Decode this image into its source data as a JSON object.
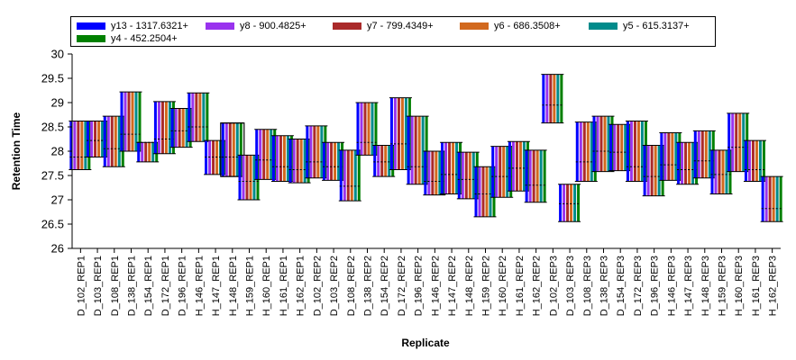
{
  "chart_data": {
    "type": "bar",
    "subtype": "floating-range-bars",
    "xlabel": "Replicate",
    "ylabel": "Retention Time",
    "ylim": [
      26,
      30
    ],
    "yticks": [
      "26",
      "26.5",
      "27",
      "27.5",
      "28",
      "28.5",
      "29",
      "29.5",
      "30"
    ],
    "grid": false,
    "legend_position": "top",
    "series": [
      {
        "name": "y13 - 1317.6321+",
        "color": "#0000ff"
      },
      {
        "name": "y8 - 900.4825+",
        "color": "#9933ee"
      },
      {
        "name": "y7 - 799.4349+",
        "color": "#aa2a2a"
      },
      {
        "name": "y6 - 686.3508+",
        "color": "#d2691e"
      },
      {
        "name": "y5 - 615.3137+",
        "color": "#008b8b"
      },
      {
        "name": "y4 - 452.2504+",
        "color": "#008000"
      }
    ],
    "categories": [
      "D_102_REP1",
      "D_103_REP1",
      "D_108_REP1",
      "D_138_REP1",
      "D_154_REP1",
      "D_172_REP1",
      "D_196_REP1",
      "H_146_REP1",
      "H_147_REP1",
      "H_148_REP1",
      "H_159_REP1",
      "H_160_REP1",
      "H_161_REP1",
      "H_162_REP1",
      "D_102_REP2",
      "D_103_REP2",
      "D_108_REP2",
      "D_138_REP2",
      "D_154_REP2",
      "D_172_REP2",
      "D_196_REP2",
      "H_146_REP2",
      "H_147_REP2",
      "H_148_REP2",
      "H_159_REP2",
      "H_160_REP2",
      "H_161_REP2",
      "H_162_REP2",
      "D_102_REP3",
      "D_103_REP3",
      "D_108_REP3",
      "D_138_REP3",
      "D_154_REP3",
      "D_172_REP3",
      "D_196_REP3",
      "H_146_REP3",
      "H_147_REP3",
      "H_148_REP3",
      "H_159_REP3",
      "H_160_REP3",
      "H_161_REP3",
      "H_162_REP3"
    ],
    "start": [
      27.62,
      27.88,
      27.68,
      28.0,
      27.78,
      27.95,
      28.08,
      28.2,
      27.52,
      27.48,
      27.0,
      27.42,
      27.38,
      27.35,
      27.45,
      27.4,
      26.98,
      27.92,
      27.48,
      27.62,
      27.32,
      27.1,
      27.12,
      27.02,
      26.65,
      27.05,
      27.18,
      26.95,
      28.58,
      26.55,
      27.38,
      27.58,
      27.6,
      27.38,
      27.08,
      27.4,
      27.32,
      27.45,
      27.12,
      27.58,
      27.38,
      26.55
    ],
    "end": [
      28.62,
      28.62,
      28.72,
      29.22,
      28.18,
      29.02,
      28.88,
      29.2,
      28.22,
      28.58,
      27.92,
      28.45,
      28.32,
      28.25,
      28.52,
      28.18,
      28.02,
      29.0,
      28.12,
      29.1,
      28.72,
      28.0,
      28.18,
      27.98,
      27.68,
      28.1,
      28.2,
      28.02,
      29.58,
      27.32,
      28.6,
      28.72,
      28.55,
      28.62,
      28.12,
      28.38,
      28.18,
      28.42,
      28.02,
      28.78,
      28.22,
      27.48
    ],
    "apex": [
      27.88,
      28.22,
      28.05,
      28.35,
      28.18,
      28.25,
      28.42,
      28.5,
      27.88,
      27.88,
      27.38,
      27.82,
      27.68,
      27.62,
      27.78,
      27.68,
      27.28,
      28.18,
      27.78,
      28.15,
      27.68,
      27.38,
      27.52,
      27.42,
      27.12,
      27.48,
      27.65,
      27.3,
      28.95,
      26.92,
      27.78,
      28.0,
      27.98,
      27.68,
      27.48,
      27.72,
      27.62,
      27.8,
      27.52,
      28.08,
      27.62,
      26.82
    ],
    "selected_category": "H_148_REP1"
  }
}
